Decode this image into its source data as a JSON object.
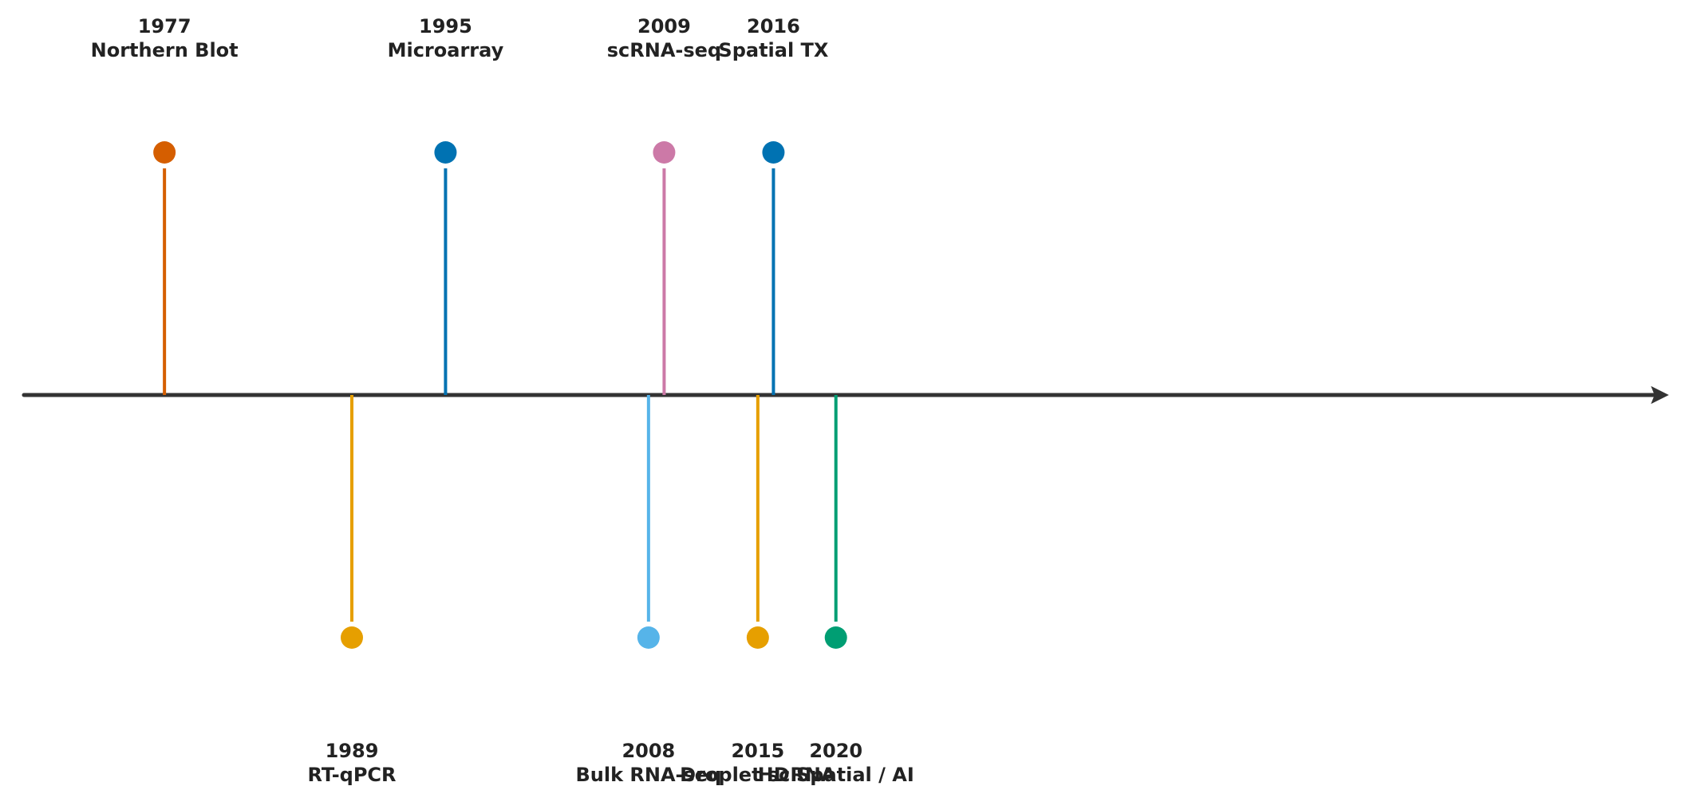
{
  "timeline": {
    "axis_color": "#333333",
    "year_range": [
      1968,
      2073
    ],
    "events": [
      {
        "year": "1977",
        "name": "Northern Blot",
        "side": "above",
        "color": "#D55E00"
      },
      {
        "year": "1989",
        "name": "RT-qPCR",
        "side": "below",
        "color": "#E69F00"
      },
      {
        "year": "1995",
        "name": "Microarray",
        "side": "above",
        "color": "#0072B2"
      },
      {
        "year": "2008",
        "name": "Bulk RNA-seq",
        "side": "below",
        "color": "#56B4E9"
      },
      {
        "year": "2009",
        "name": "scRNA-seq",
        "side": "above",
        "color": "#CC79A7"
      },
      {
        "year": "2015",
        "name": "Droplet scRNA",
        "side": "below",
        "color": "#E69F00"
      },
      {
        "year": "2016",
        "name": "Spatial TX",
        "side": "above",
        "color": "#0072B2"
      },
      {
        "year": "2020",
        "name": "HD Spatial / AI",
        "side": "below",
        "color": "#009E73"
      }
    ]
  }
}
